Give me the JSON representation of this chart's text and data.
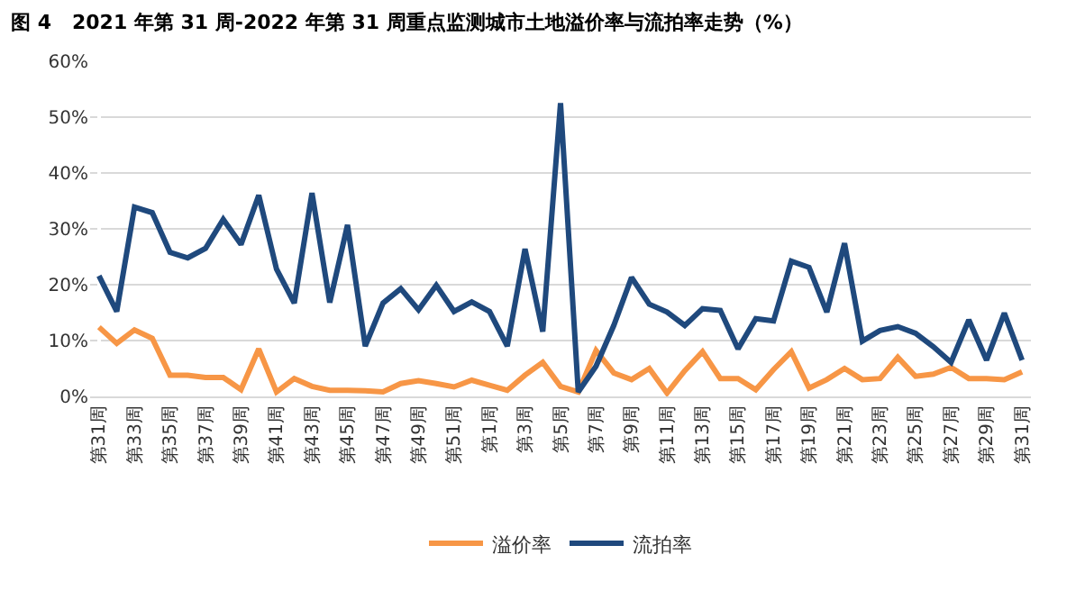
{
  "chart_data": {
    "type": "line",
    "title": "图 4   2021 年第 31 周-2022 年第 31 周重点监测城市土地溢价率与流拍率走势（%）",
    "categories": [
      "第31周",
      null,
      "第33周",
      null,
      "第35周",
      null,
      "第37周",
      null,
      "第39周",
      null,
      "第41周",
      null,
      "第43周",
      null,
      "第45周",
      null,
      "第47周",
      null,
      "第49周",
      null,
      "第51周",
      null,
      "第1周",
      null,
      "第3周",
      null,
      "第5周",
      null,
      "第7周",
      null,
      "第9周",
      null,
      "第11周",
      null,
      "第13周",
      null,
      "第15周",
      null,
      "第17周",
      null,
      "第19周",
      null,
      "第21周",
      null,
      "第23周",
      null,
      "第25周",
      null,
      "第27周",
      null,
      "第29周",
      null,
      "第31周"
    ],
    "series": [
      {
        "name": "溢价率",
        "color": "#f79646",
        "values": [
          12.4,
          9.5,
          11.9,
          10.4,
          3.8,
          3.8,
          3.4,
          3.4,
          1.2,
          8.5,
          0.8,
          3.2,
          1.8,
          1.1,
          1.1,
          1.0,
          0.8,
          2.3,
          2.8,
          2.3,
          1.7,
          2.9,
          2.0,
          1.1,
          3.8,
          6.1,
          1.8,
          0.8,
          8.2,
          4.2,
          3.0,
          5.0,
          0.6,
          4.6,
          8.0,
          3.2,
          3.2,
          1.2,
          4.8,
          8.0,
          1.5,
          3.0,
          5.0,
          3.0,
          3.2,
          7.0,
          3.6,
          4.0,
          5.2,
          3.2,
          3.2,
          3.0,
          4.4
        ]
      },
      {
        "name": "流拍率",
        "color": "#1f497d",
        "values": [
          21.6,
          15.2,
          33.9,
          32.9,
          25.8,
          24.8,
          26.5,
          31.7,
          27.2,
          36.0,
          22.8,
          16.7,
          36.4,
          16.8,
          30.7,
          9.0,
          16.7,
          19.3,
          15.5,
          19.9,
          15.2,
          16.9,
          15.2,
          9.0,
          26.4,
          11.6,
          52.5,
          0.8,
          5.4,
          12.7,
          21.3,
          16.5,
          15.1,
          12.7,
          15.7,
          15.4,
          8.5,
          13.9,
          13.5,
          24.2,
          23.1,
          15.1,
          27.4,
          9.9,
          11.8,
          12.5,
          11.3,
          8.9,
          6.1,
          13.7,
          6.5,
          14.9,
          6.5
        ]
      }
    ],
    "ylim": [
      0,
      60
    ],
    "yticks": [
      {
        "value": 0,
        "label": "0%"
      },
      {
        "value": 10,
        "label": "10%"
      },
      {
        "value": 20,
        "label": "20%"
      },
      {
        "value": 30,
        "label": "30%"
      },
      {
        "value": 40,
        "label": "40%"
      },
      {
        "value": 50,
        "label": "50%"
      },
      {
        "value": 60,
        "label": "60%"
      }
    ],
    "grid": "y",
    "legend": "bottom",
    "marker": "none",
    "line_style": "solid"
  }
}
